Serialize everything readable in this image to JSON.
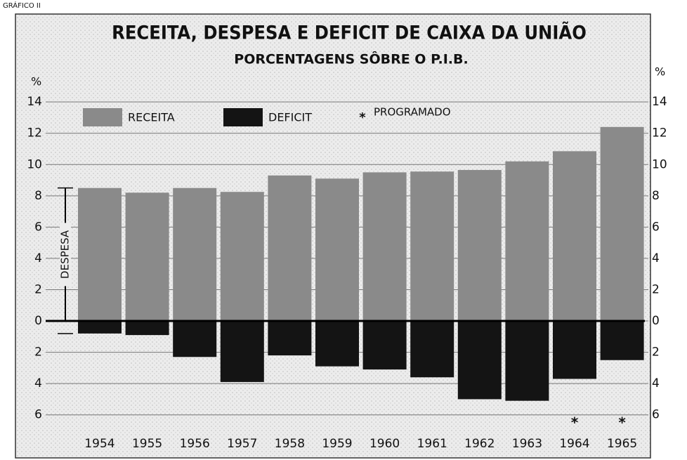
{
  "chart_data": {
    "type": "bar",
    "supertitle": "GRÁFICO II",
    "title": "RECEITA, DESPESA E DEFICIT DE CAIXA DA UNIÃO",
    "subtitle": "PORCENTAGENS SÔBRE O P.I.B.",
    "ylabel": "%",
    "annotation": "DESPESA",
    "categories": [
      "1954",
      "1955",
      "1956",
      "1957",
      "1958",
      "1959",
      "1960",
      "1961",
      "1962",
      "1963",
      "1964",
      "1965"
    ],
    "series": [
      {
        "name": "RECEITA",
        "color": "#8a8a8a",
        "values": [
          8.5,
          8.2,
          8.5,
          8.25,
          9.3,
          9.1,
          9.5,
          9.55,
          9.65,
          10.2,
          10.85,
          12.4
        ]
      },
      {
        "name": "DEFICIT",
        "color": "#141414",
        "values": [
          -0.8,
          -0.9,
          -2.3,
          -3.9,
          -2.2,
          -2.9,
          -3.1,
          -3.6,
          -5.0,
          -5.1,
          -3.7,
          -2.5
        ]
      }
    ],
    "programmed_marker": "*",
    "programmed_label": "PROGRAMADO",
    "programmed": [
      false,
      false,
      false,
      false,
      false,
      false,
      false,
      false,
      false,
      false,
      true,
      true
    ],
    "ylim": [
      -7,
      14.5
    ],
    "yticks": [
      14,
      12,
      10,
      8,
      6,
      4,
      2,
      0,
      {
        "value": -2,
        "label": "2"
      },
      {
        "value": -4,
        "label": "4"
      },
      {
        "value": -6,
        "label": "6"
      }
    ],
    "grid": true
  }
}
